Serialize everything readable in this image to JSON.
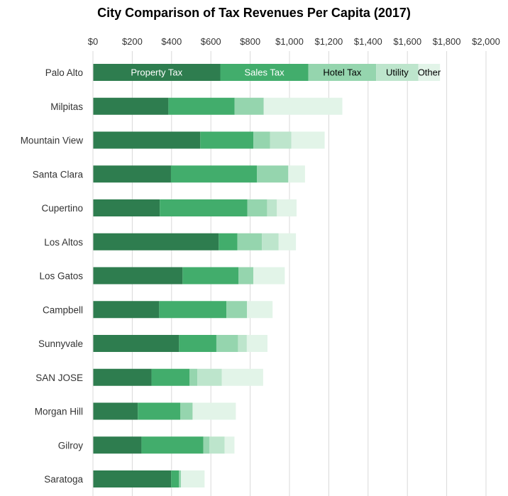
{
  "chart_data": {
    "type": "bar",
    "orientation": "horizontal",
    "stacked": true,
    "title": "City Comparison of Tax Revenues Per Capita (2017)",
    "xlim": [
      0,
      2000
    ],
    "x_ticks": [
      0,
      200,
      400,
      600,
      800,
      1000,
      1200,
      1400,
      1600,
      1800,
      2000
    ],
    "x_tick_labels": [
      "$0",
      "$200",
      "$400",
      "$600",
      "$800",
      "$1,000",
      "$1,200",
      "$1,400",
      "$1,600",
      "$1,800",
      "$2,000"
    ],
    "x_axis_position": "top",
    "grid": true,
    "legend": "inline labels in first bar",
    "categories": [
      "Palo Alto",
      "Milpitas",
      "Mountain View",
      "Santa Clara",
      "Cupertino",
      "Los Altos",
      "Los Gatos",
      "Campbell",
      "Sunnyvale",
      "SAN JOSE",
      "Morgan Hill",
      "Gilroy",
      "Saratoga"
    ],
    "series": [
      {
        "name": "Property Tax",
        "color": "#2e7d4f",
        "label_color": "#ffffff",
        "values": [
          648,
          384,
          546,
          397,
          340,
          640,
          456,
          337,
          438,
          298,
          228,
          247,
          398
        ]
      },
      {
        "name": "Sales Tax",
        "color": "#42ad6c",
        "label_color": "#ffffff",
        "values": [
          448,
          337,
          270,
          437,
          446,
          95,
          285,
          342,
          190,
          193,
          217,
          315,
          40
        ]
      },
      {
        "name": "Hotel Tax",
        "color": "#95d5ae",
        "label_color": "#000000",
        "values": [
          345,
          148,
          85,
          160,
          100,
          125,
          75,
          105,
          110,
          40,
          62,
          30,
          10
        ]
      },
      {
        "name": "Utility",
        "color": "#bde5cc",
        "label_color": "#000000",
        "values": [
          215,
          0,
          108,
          0,
          50,
          85,
          0,
          0,
          45,
          125,
          0,
          78,
          0
        ]
      },
      {
        "name": "Other",
        "color": "#e2f4e8",
        "label_color": "#000000",
        "values": [
          110,
          400,
          170,
          85,
          100,
          88,
          160,
          130,
          105,
          210,
          220,
          50,
          120
        ]
      }
    ]
  }
}
